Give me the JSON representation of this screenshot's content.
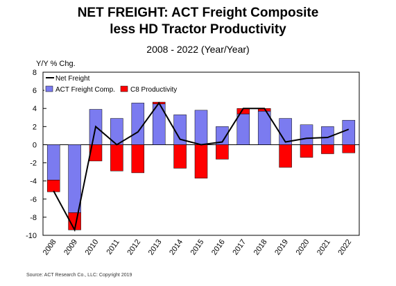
{
  "chart_data": {
    "type": "bar",
    "title_line1": "NET FREIGHT:  ACT Freight Composite",
    "title_line2": "less HD Tractor Productivity",
    "subtitle": "2008 - 2022 (Year/Year)",
    "ylabel": "Y/Y % Chg.",
    "xlabel": "",
    "ylim": [
      -10,
      8
    ],
    "yticks": [
      8,
      6,
      4,
      2,
      0,
      -2,
      -4,
      -6,
      -8,
      -10
    ],
    "categories": [
      "2008",
      "2009",
      "2010",
      "2011",
      "2012",
      "2013",
      "2014",
      "2015",
      "2016",
      "2017",
      "2018",
      "2019",
      "2020",
      "2021",
      "2022"
    ],
    "series": [
      {
        "name": "ACT Freight Comp.",
        "kind": "bar",
        "color": "#7b7bf0",
        "values": [
          -3.9,
          -7.5,
          3.9,
          2.9,
          4.6,
          4.5,
          3.3,
          3.8,
          2.0,
          3.4,
          3.7,
          2.9,
          2.2,
          2.0,
          2.7
        ]
      },
      {
        "name": "C8 Productivity",
        "kind": "bar",
        "color": "#ff0000",
        "values": [
          -1.3,
          -1.9,
          -1.8,
          -2.9,
          -3.1,
          0.2,
          -2.6,
          -3.7,
          -1.6,
          0.6,
          0.3,
          -2.5,
          -1.4,
          -1.0,
          -0.9
        ]
      },
      {
        "name": "Net Freight",
        "kind": "line",
        "color": "#000000",
        "values": [
          -5.1,
          -9.4,
          2.0,
          0.0,
          1.4,
          4.6,
          0.6,
          0.0,
          0.3,
          4.0,
          4.0,
          0.3,
          0.7,
          0.8,
          1.7
        ]
      }
    ],
    "grid": false,
    "legend_position": "top-left",
    "source": "Source: ACT Research Co., LLC: Copyright 2019"
  }
}
